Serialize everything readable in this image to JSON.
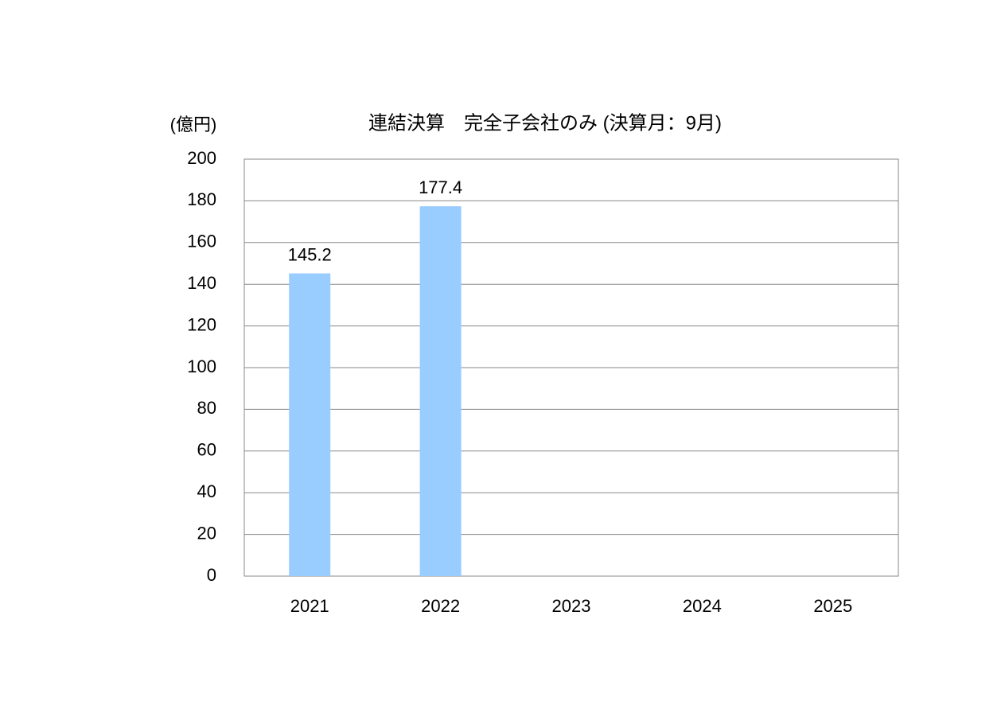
{
  "chart_data": {
    "type": "bar",
    "title": "連結決算　完全子会社のみ  (決算月：9月)",
    "y_label": "(億円)",
    "categories": [
      "2021",
      "2022",
      "2023",
      "2024",
      "2025"
    ],
    "values": [
      145.2,
      177.4,
      null,
      null,
      null
    ],
    "color": "#99ccff",
    "ylim": [
      0,
      200
    ],
    "yticks": [
      0,
      20,
      40,
      60,
      80,
      100,
      120,
      140,
      160,
      180,
      200
    ],
    "grid": true
  }
}
